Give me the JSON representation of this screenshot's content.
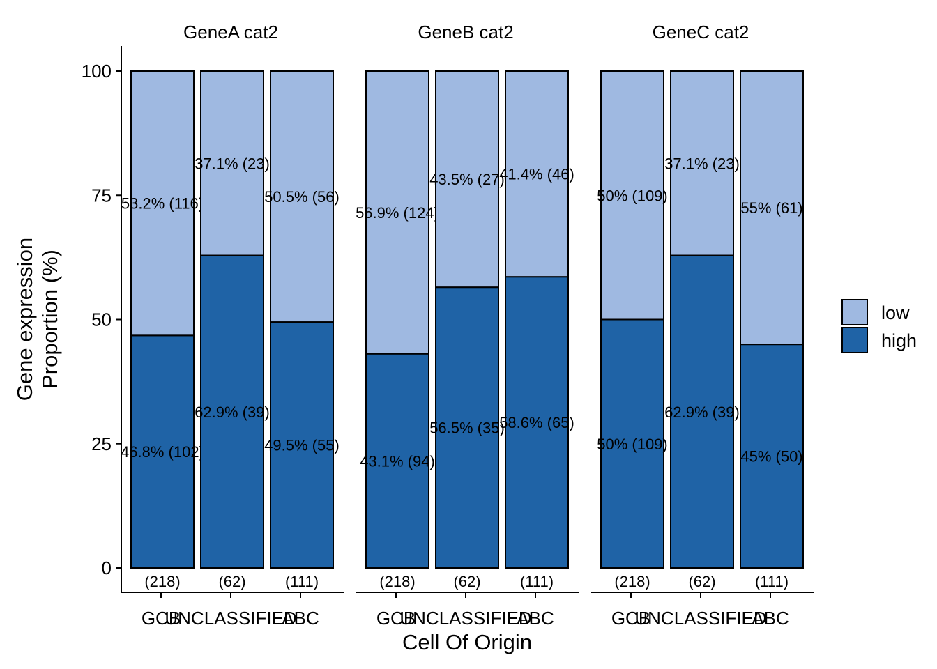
{
  "chart_data": {
    "type": "bar",
    "stacked": true,
    "xlabel": "Cell Of Origin",
    "ylabel_lines": [
      "Gene expression",
      "Proportion (%)"
    ],
    "ylim": [
      0,
      100
    ],
    "yticks": [
      0,
      25,
      50,
      75,
      100
    ],
    "categories": [
      "GCB",
      "UNCLASSIFIED",
      "ABC"
    ],
    "totals_labels": [
      "(218)",
      "(62)",
      "(111)"
    ],
    "colors": {
      "low": "#9FB9E1",
      "high": "#1F63A6"
    },
    "legend": {
      "position": "right",
      "entries": [
        {
          "key": "low",
          "label": "low"
        },
        {
          "key": "high",
          "label": "high"
        }
      ]
    },
    "panels": [
      {
        "title": "GeneA cat2",
        "series": [
          {
            "name": "high",
            "values": [
              46.8,
              62.9,
              49.5
            ],
            "labels": [
              "46.8% (102)",
              "62.9% (39)",
              "49.5% (55)"
            ]
          },
          {
            "name": "low",
            "values": [
              53.2,
              37.1,
              50.5
            ],
            "labels": [
              "53.2% (116)",
              "37.1% (23)",
              "50.5% (56)"
            ]
          }
        ]
      },
      {
        "title": "GeneB cat2",
        "series": [
          {
            "name": "high",
            "values": [
              43.1,
              56.5,
              58.6
            ],
            "labels": [
              "43.1% (94)",
              "56.5% (35)",
              "58.6% (65)"
            ]
          },
          {
            "name": "low",
            "values": [
              56.9,
              43.5,
              41.4
            ],
            "labels": [
              "56.9% (124)",
              "43.5% (27)",
              "41.4% (46)"
            ]
          }
        ]
      },
      {
        "title": "GeneC cat2",
        "series": [
          {
            "name": "high",
            "values": [
              50,
              62.9,
              45
            ],
            "labels": [
              "50% (109)",
              "62.9% (39)",
              "45% (50)"
            ]
          },
          {
            "name": "low",
            "values": [
              50,
              37.1,
              55
            ],
            "labels": [
              "50% (109)",
              "37.1% (23)",
              "55% (61)"
            ]
          }
        ]
      }
    ]
  }
}
